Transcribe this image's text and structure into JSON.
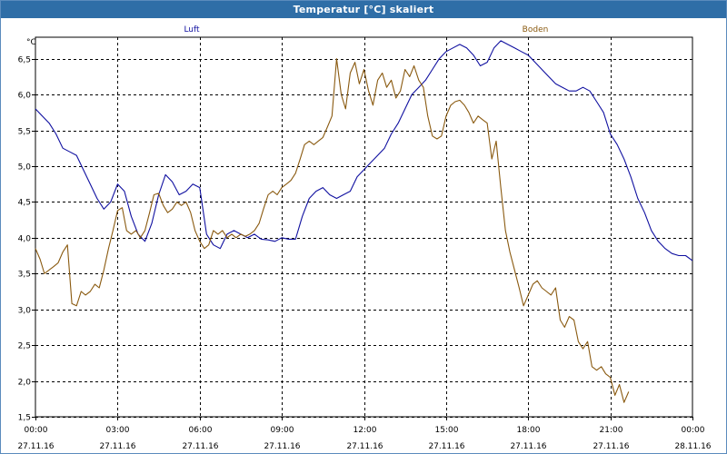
{
  "window": {
    "title": "Temperatur [°C] skaliert"
  },
  "chart_data": {
    "type": "line",
    "title": "Temperatur [°C] skaliert",
    "ylabel": "°C",
    "xlabel": "",
    "ylim": [
      1.5,
      6.8
    ],
    "xlim": [
      0,
      24
    ],
    "grid": true,
    "legend_position": "top",
    "yticks": [
      1.5,
      2.0,
      2.5,
      3.0,
      3.5,
      4.0,
      4.5,
      5.0,
      5.5,
      6.0,
      6.5
    ],
    "ytick_labels": [
      "1,5",
      "2,0",
      "2,5",
      "3,0",
      "3,5",
      "4,0",
      "4,5",
      "5,0",
      "5,5",
      "6,0",
      "6,5"
    ],
    "xticks": [
      {
        "x": 0,
        "time": "00:00",
        "date": "27.11.16"
      },
      {
        "x": 3,
        "time": "03:00",
        "date": "27.11.16"
      },
      {
        "x": 6,
        "time": "06:00",
        "date": "27.11.16"
      },
      {
        "x": 9,
        "time": "09:00",
        "date": "27.11.16"
      },
      {
        "x": 12,
        "time": "12:00",
        "date": "27.11.16"
      },
      {
        "x": 15,
        "time": "15:00",
        "date": "27.11.16"
      },
      {
        "x": 18,
        "time": "18:00",
        "date": "27.11.16"
      },
      {
        "x": 21,
        "time": "21:00",
        "date": "27.11.16"
      },
      {
        "x": 24,
        "time": "00:00",
        "date": "28.11.16"
      }
    ],
    "series": [
      {
        "name": "Luft",
        "color": "#1010a0",
        "points": [
          [
            0,
            5.8
          ],
          [
            0.25,
            5.7
          ],
          [
            0.5,
            5.6
          ],
          [
            0.75,
            5.45
          ],
          [
            1.0,
            5.25
          ],
          [
            1.25,
            5.2
          ],
          [
            1.5,
            5.15
          ],
          [
            1.75,
            4.95
          ],
          [
            2.0,
            4.75
          ],
          [
            2.25,
            4.55
          ],
          [
            2.5,
            4.4
          ],
          [
            2.75,
            4.5
          ],
          [
            3.0,
            4.75
          ],
          [
            3.25,
            4.65
          ],
          [
            3.5,
            4.3
          ],
          [
            3.75,
            4.05
          ],
          [
            4.0,
            3.95
          ],
          [
            4.25,
            4.2
          ],
          [
            4.5,
            4.6
          ],
          [
            4.75,
            4.88
          ],
          [
            5.0,
            4.78
          ],
          [
            5.25,
            4.6
          ],
          [
            5.5,
            4.65
          ],
          [
            5.75,
            4.75
          ],
          [
            6.0,
            4.7
          ],
          [
            6.25,
            4.05
          ],
          [
            6.5,
            3.9
          ],
          [
            6.75,
            3.85
          ],
          [
            7.0,
            4.05
          ],
          [
            7.25,
            4.1
          ],
          [
            7.5,
            4.05
          ],
          [
            7.75,
            4.0
          ],
          [
            8.0,
            4.05
          ],
          [
            8.25,
            3.98
          ],
          [
            8.5,
            3.97
          ],
          [
            8.75,
            3.95
          ],
          [
            9.0,
            4.0
          ],
          [
            9.25,
            3.98
          ],
          [
            9.5,
            3.98
          ],
          [
            9.75,
            4.3
          ],
          [
            10.0,
            4.55
          ],
          [
            10.25,
            4.65
          ],
          [
            10.5,
            4.7
          ],
          [
            10.75,
            4.6
          ],
          [
            11.0,
            4.55
          ],
          [
            11.25,
            4.6
          ],
          [
            11.5,
            4.65
          ],
          [
            11.75,
            4.85
          ],
          [
            12.0,
            4.95
          ],
          [
            12.25,
            5.05
          ],
          [
            12.5,
            5.15
          ],
          [
            12.75,
            5.25
          ],
          [
            13.0,
            5.45
          ],
          [
            13.25,
            5.6
          ],
          [
            13.5,
            5.8
          ],
          [
            13.75,
            6.0
          ],
          [
            14.0,
            6.1
          ],
          [
            14.25,
            6.2
          ],
          [
            14.5,
            6.35
          ],
          [
            14.75,
            6.5
          ],
          [
            15.0,
            6.6
          ],
          [
            15.25,
            6.65
          ],
          [
            15.5,
            6.7
          ],
          [
            15.75,
            6.65
          ],
          [
            16.0,
            6.55
          ],
          [
            16.25,
            6.4
          ],
          [
            16.5,
            6.45
          ],
          [
            16.75,
            6.65
          ],
          [
            17.0,
            6.75
          ],
          [
            17.25,
            6.7
          ],
          [
            17.5,
            6.65
          ],
          [
            17.75,
            6.6
          ],
          [
            18.0,
            6.55
          ],
          [
            18.25,
            6.45
          ],
          [
            18.5,
            6.35
          ],
          [
            18.75,
            6.25
          ],
          [
            19.0,
            6.15
          ],
          [
            19.25,
            6.1
          ],
          [
            19.5,
            6.05
          ],
          [
            19.75,
            6.05
          ],
          [
            20.0,
            6.1
          ],
          [
            20.25,
            6.05
          ],
          [
            20.5,
            5.9
          ],
          [
            20.75,
            5.75
          ],
          [
            21.0,
            5.45
          ],
          [
            21.25,
            5.3
          ],
          [
            21.5,
            5.1
          ],
          [
            21.75,
            4.85
          ],
          [
            22.0,
            4.55
          ],
          [
            22.25,
            4.35
          ],
          [
            22.5,
            4.1
          ],
          [
            22.75,
            3.95
          ],
          [
            23.0,
            3.85
          ],
          [
            23.25,
            3.78
          ],
          [
            23.5,
            3.75
          ],
          [
            23.75,
            3.75
          ],
          [
            24.0,
            3.68
          ]
        ]
      },
      {
        "name": "Boden",
        "color": "#8a5a10",
        "points": [
          [
            0,
            3.85
          ],
          [
            0.17,
            3.7
          ],
          [
            0.33,
            3.5
          ],
          [
            0.5,
            3.55
          ],
          [
            0.67,
            3.6
          ],
          [
            0.83,
            3.65
          ],
          [
            1.0,
            3.8
          ],
          [
            1.17,
            3.9
          ],
          [
            1.33,
            3.08
          ],
          [
            1.5,
            3.05
          ],
          [
            1.67,
            3.25
          ],
          [
            1.83,
            3.2
          ],
          [
            2.0,
            3.25
          ],
          [
            2.17,
            3.35
          ],
          [
            2.33,
            3.3
          ],
          [
            2.5,
            3.55
          ],
          [
            2.67,
            3.85
          ],
          [
            2.83,
            4.1
          ],
          [
            3.0,
            4.38
          ],
          [
            3.17,
            4.42
          ],
          [
            3.33,
            4.1
          ],
          [
            3.5,
            4.05
          ],
          [
            3.67,
            4.1
          ],
          [
            3.83,
            4.0
          ],
          [
            4.0,
            4.1
          ],
          [
            4.17,
            4.35
          ],
          [
            4.33,
            4.6
          ],
          [
            4.5,
            4.62
          ],
          [
            4.67,
            4.45
          ],
          [
            4.83,
            4.35
          ],
          [
            5.0,
            4.4
          ],
          [
            5.17,
            4.5
          ],
          [
            5.33,
            4.45
          ],
          [
            5.5,
            4.5
          ],
          [
            5.67,
            4.35
          ],
          [
            5.83,
            4.1
          ],
          [
            6.0,
            3.95
          ],
          [
            6.17,
            3.85
          ],
          [
            6.33,
            3.9
          ],
          [
            6.5,
            4.1
          ],
          [
            6.67,
            4.05
          ],
          [
            6.83,
            4.1
          ],
          [
            7.0,
            4.0
          ],
          [
            7.17,
            4.05
          ],
          [
            7.33,
            4.0
          ],
          [
            7.5,
            4.05
          ],
          [
            7.67,
            4.02
          ],
          [
            7.83,
            4.05
          ],
          [
            8.0,
            4.1
          ],
          [
            8.17,
            4.2
          ],
          [
            8.33,
            4.4
          ],
          [
            8.5,
            4.6
          ],
          [
            8.67,
            4.65
          ],
          [
            8.83,
            4.6
          ],
          [
            9.0,
            4.7
          ],
          [
            9.17,
            4.75
          ],
          [
            9.33,
            4.8
          ],
          [
            9.5,
            4.9
          ],
          [
            9.67,
            5.1
          ],
          [
            9.83,
            5.3
          ],
          [
            10.0,
            5.35
          ],
          [
            10.17,
            5.3
          ],
          [
            10.33,
            5.35
          ],
          [
            10.5,
            5.4
          ],
          [
            10.67,
            5.55
          ],
          [
            10.83,
            5.7
          ],
          [
            11.0,
            6.5
          ],
          [
            11.17,
            6.0
          ],
          [
            11.33,
            5.8
          ],
          [
            11.5,
            6.3
          ],
          [
            11.67,
            6.45
          ],
          [
            11.83,
            6.15
          ],
          [
            12.0,
            6.35
          ],
          [
            12.17,
            6.05
          ],
          [
            12.33,
            5.85
          ],
          [
            12.5,
            6.2
          ],
          [
            12.67,
            6.3
          ],
          [
            12.83,
            6.1
          ],
          [
            13.0,
            6.2
          ],
          [
            13.17,
            5.95
          ],
          [
            13.33,
            6.05
          ],
          [
            13.5,
            6.35
          ],
          [
            13.67,
            6.25
          ],
          [
            13.83,
            6.4
          ],
          [
            14.0,
            6.2
          ],
          [
            14.17,
            6.1
          ],
          [
            14.33,
            5.7
          ],
          [
            14.5,
            5.42
          ],
          [
            14.67,
            5.38
          ],
          [
            14.83,
            5.42
          ],
          [
            15.0,
            5.7
          ],
          [
            15.17,
            5.85
          ],
          [
            15.33,
            5.9
          ],
          [
            15.5,
            5.92
          ],
          [
            15.67,
            5.85
          ],
          [
            15.83,
            5.75
          ],
          [
            16.0,
            5.6
          ],
          [
            16.17,
            5.7
          ],
          [
            16.33,
            5.65
          ],
          [
            16.5,
            5.6
          ],
          [
            16.67,
            5.1
          ],
          [
            16.83,
            5.35
          ],
          [
            17.0,
            4.7
          ],
          [
            17.17,
            4.1
          ],
          [
            17.33,
            3.8
          ],
          [
            17.5,
            3.55
          ],
          [
            17.67,
            3.3
          ],
          [
            17.83,
            3.05
          ],
          [
            18.0,
            3.2
          ],
          [
            18.17,
            3.35
          ],
          [
            18.33,
            3.4
          ],
          [
            18.5,
            3.3
          ],
          [
            18.67,
            3.25
          ],
          [
            18.83,
            3.2
          ],
          [
            19.0,
            3.3
          ],
          [
            19.17,
            2.85
          ],
          [
            19.33,
            2.75
          ],
          [
            19.5,
            2.9
          ],
          [
            19.67,
            2.85
          ],
          [
            19.83,
            2.55
          ],
          [
            20.0,
            2.45
          ],
          [
            20.17,
            2.55
          ],
          [
            20.33,
            2.2
          ],
          [
            20.5,
            2.15
          ],
          [
            20.67,
            2.2
          ],
          [
            20.83,
            2.1
          ],
          [
            21.0,
            2.05
          ],
          [
            21.17,
            1.8
          ],
          [
            21.33,
            1.95
          ],
          [
            21.5,
            1.7
          ],
          [
            21.67,
            1.85
          ]
        ]
      }
    ]
  }
}
